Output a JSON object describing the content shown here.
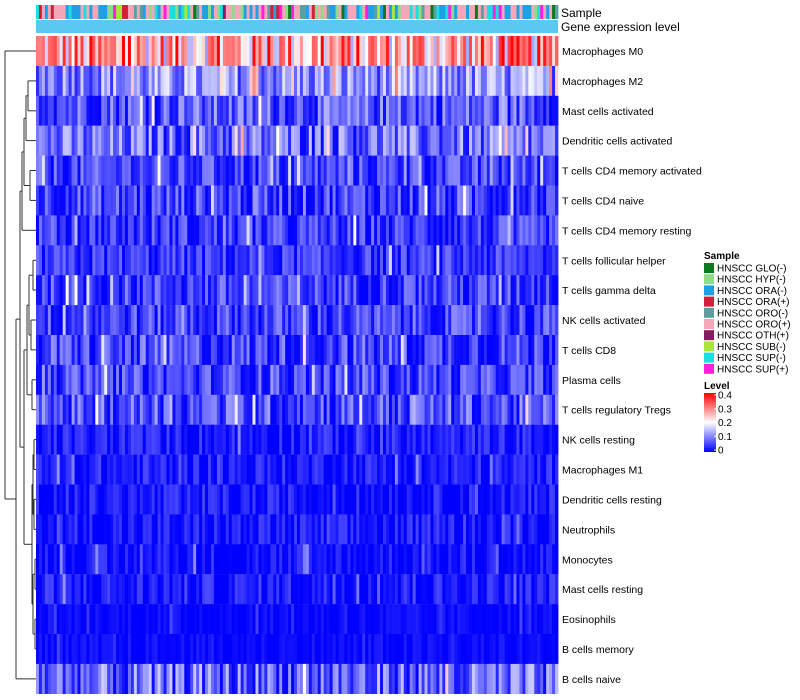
{
  "chart_data": {
    "type": "heatmap",
    "rows": [
      {
        "label": "Macrophages M0",
        "mean": 0.26,
        "spread": 0.14
      },
      {
        "label": "Macrophages M2",
        "mean": 0.11,
        "spread": 0.08
      },
      {
        "label": "Mast cells activated",
        "mean": 0.07,
        "spread": 0.07
      },
      {
        "label": "Dendritic cells activated",
        "mean": 0.08,
        "spread": 0.08
      },
      {
        "label": "T cells CD4 memory activated",
        "mean": 0.05,
        "spread": 0.06
      },
      {
        "label": "T cells CD4 naive",
        "mean": 0.05,
        "spread": 0.07
      },
      {
        "label": "T cells CD4 memory resting",
        "mean": 0.04,
        "spread": 0.06
      },
      {
        "label": "T cells follicular helper",
        "mean": 0.04,
        "spread": 0.05
      },
      {
        "label": "T cells gamma delta",
        "mean": 0.05,
        "spread": 0.06
      },
      {
        "label": "NK cells activated",
        "mean": 0.05,
        "spread": 0.06
      },
      {
        "label": "T cells CD8",
        "mean": 0.05,
        "spread": 0.07
      },
      {
        "label": "Plasma cells",
        "mean": 0.05,
        "spread": 0.06
      },
      {
        "label": "T cells regulatory  Tregs",
        "mean": 0.06,
        "spread": 0.07
      },
      {
        "label": "NK cells resting",
        "mean": 0.02,
        "spread": 0.04
      },
      {
        "label": "Macrophages M1",
        "mean": 0.02,
        "spread": 0.04
      },
      {
        "label": "Dendritic cells resting",
        "mean": 0.015,
        "spread": 0.04
      },
      {
        "label": "Neutrophils",
        "mean": 0.015,
        "spread": 0.04
      },
      {
        "label": "Monocytes",
        "mean": 0.01,
        "spread": 0.04
      },
      {
        "label": "Mast cells resting",
        "mean": 0.02,
        "spread": 0.04
      },
      {
        "label": "Eosinophils",
        "mean": 0.005,
        "spread": 0.02
      },
      {
        "label": "B cells memory",
        "mean": 0.005,
        "spread": 0.02
      },
      {
        "label": "B cells naive",
        "mean": 0.07,
        "spread": 0.09
      }
    ],
    "n_samples": 176,
    "annotations": [
      {
        "label": "Sample"
      },
      {
        "label": "Gene expression level"
      }
    ],
    "legend_sample": {
      "title": "Sample",
      "items": [
        {
          "label": "HNSCC GLO(-)",
          "color": "#0b7a1e"
        },
        {
          "label": "HNSCC HYP(-)",
          "color": "#8ddc8a"
        },
        {
          "label": "HNSCC ORA(-)",
          "color": "#1ea0e6"
        },
        {
          "label": "HNSCC ORA(+)",
          "color": "#d21f3c"
        },
        {
          "label": "HNSCC ORO(-)",
          "color": "#5f9ea0"
        },
        {
          "label": "HNSCC ORO(+)",
          "color": "#f4a7b9"
        },
        {
          "label": "HNSCC OTH(+)",
          "color": "#8b1a5e"
        },
        {
          "label": "HNSCC SUB(-)",
          "color": "#a8e63a"
        },
        {
          "label": "HNSCC SUP(-)",
          "color": "#17e0e0"
        },
        {
          "label": "HNSCC SUP(+)",
          "color": "#ff1ee0"
        }
      ]
    },
    "legend_level": {
      "title": "Level",
      "ticks": [
        "0.4",
        "0.3",
        "0.2",
        "0.1",
        "0"
      ],
      "range": [
        0,
        0.4
      ],
      "colors": [
        "#0000ff",
        "#ffffff",
        "#ff0000"
      ]
    },
    "expression_level_color": "#5ac8f0",
    "dendrogram_color": "#333333"
  }
}
